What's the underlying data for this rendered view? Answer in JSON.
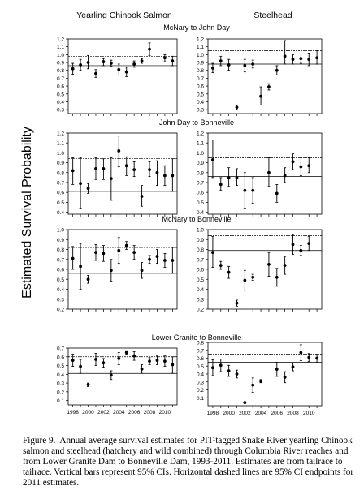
{
  "figure": {
    "col_headers": [
      "Yearling Chinook Salmon",
      "Steelhead"
    ],
    "y_axis_label": "Estimated Survival Probability",
    "caption_label": "Figure 9.",
    "caption_text": "Annual average survival estimates for PIT-tagged Snake River yearling Chinook salmon and steelhead (hatchery and wild combined) through Columbia River reaches and from Lower Granite Dam to Bonneville Dam, 1993-2011.  Estimates are from tailrace to tailrace.  Vertical bars represent 95% CIs.  Horizontal dashed lines are 95% CI endpoints for 2011 estimates."
  },
  "chart_data": [
    {
      "type": "scatter",
      "panel": "Yearling Chinook Salmon",
      "title": "McNary to John Day",
      "ylim": [
        0.25,
        1.2
      ],
      "yticks": [
        0.3,
        0.4,
        0.5,
        0.6,
        0.7,
        0.8,
        0.9,
        1.0,
        1.1,
        1.2
      ],
      "xticks": [],
      "ci_2011": [
        0.86,
        0.98
      ],
      "years": [
        1998,
        1999,
        2000,
        2001,
        2002,
        2003,
        2004,
        2005,
        2006,
        2007,
        2008,
        2009,
        2010,
        2011
      ],
      "estimate": [
        0.82,
        0.87,
        0.9,
        0.76,
        0.91,
        0.89,
        0.81,
        0.78,
        0.88,
        0.92,
        1.07,
        null,
        0.96,
        0.92
      ],
      "ci_low": [
        0.75,
        0.8,
        0.82,
        0.71,
        0.86,
        0.85,
        0.74,
        0.72,
        0.84,
        0.89,
        0.99,
        null,
        0.91,
        0.86
      ],
      "ci_high": [
        0.89,
        0.94,
        0.99,
        0.81,
        0.95,
        0.93,
        0.88,
        0.84,
        0.92,
        0.95,
        1.15,
        null,
        1.0,
        0.98
      ]
    },
    {
      "type": "scatter",
      "panel": "Steelhead",
      "title": "McNary to John Day",
      "ylim": [
        0.25,
        1.2
      ],
      "yticks": [
        0.3,
        0.4,
        0.5,
        0.6,
        0.7,
        0.8,
        0.9,
        1.0,
        1.1,
        1.2
      ],
      "xticks": [],
      "ci_2011": [
        0.88,
        1.05
      ],
      "years": [
        1998,
        1999,
        2000,
        2001,
        2002,
        2003,
        2004,
        2005,
        2006,
        2007,
        2008,
        2009,
        2010,
        2011
      ],
      "estimate": [
        0.83,
        0.92,
        0.87,
        0.33,
        0.86,
        0.88,
        0.47,
        0.59,
        0.8,
        0.98,
        0.94,
        0.95,
        0.94,
        0.96
      ],
      "ci_low": [
        0.77,
        0.86,
        0.8,
        0.3,
        0.78,
        0.83,
        0.36,
        0.55,
        0.74,
        0.88,
        0.88,
        0.89,
        0.86,
        0.88
      ],
      "ci_high": [
        0.89,
        0.98,
        0.94,
        0.36,
        0.94,
        0.93,
        0.59,
        0.63,
        0.86,
        1.18,
        1.0,
        1.01,
        1.02,
        1.05
      ]
    },
    {
      "type": "scatter",
      "panel": "Yearling Chinook Salmon",
      "title": "John Day to Bonneville",
      "ylim": [
        0.38,
        1.2
      ],
      "yticks": [
        0.4,
        0.5,
        0.6,
        0.7,
        0.8,
        0.9,
        1.0,
        1.1,
        1.2
      ],
      "xticks": [],
      "ci_2011": [
        0.61,
        0.94
      ],
      "years": [
        1998,
        1999,
        2000,
        2001,
        2002,
        2003,
        2004,
        2005,
        2006,
        2007,
        2008,
        2009,
        2010,
        2011
      ],
      "estimate": [
        0.82,
        0.69,
        0.64,
        0.84,
        0.84,
        0.74,
        1.02,
        0.87,
        0.83,
        0.56,
        0.83,
        0.8,
        0.77,
        0.77
      ],
      "ci_low": [
        0.68,
        0.44,
        0.59,
        0.73,
        0.73,
        0.52,
        0.86,
        0.77,
        0.76,
        0.46,
        0.76,
        0.67,
        0.67,
        0.61
      ],
      "ci_high": [
        0.95,
        0.95,
        0.69,
        0.95,
        0.94,
        0.95,
        1.17,
        0.96,
        0.91,
        0.67,
        0.91,
        0.92,
        0.87,
        0.94
      ]
    },
    {
      "type": "scatter",
      "panel": "Steelhead",
      "title": "John Day to Bonneville",
      "ylim": [
        0.38,
        1.2
      ],
      "yticks": [
        0.4,
        0.5,
        0.6,
        0.7,
        0.8,
        0.9,
        1.0,
        1.1,
        1.2
      ],
      "xticks": [],
      "ci_2011": [
        0.76,
        0.95
      ],
      "years": [
        1998,
        1999,
        2000,
        2001,
        2002,
        2003,
        2004,
        2005,
        2006,
        2007,
        2008,
        2009,
        2010,
        2011
      ],
      "estimate": [
        0.93,
        0.68,
        0.75,
        0.75,
        0.62,
        0.62,
        null,
        0.8,
        0.59,
        0.77,
        0.91,
        0.86,
        0.87,
        null
      ],
      "ci_low": [
        0.75,
        0.62,
        0.66,
        0.67,
        0.44,
        0.49,
        null,
        0.66,
        0.5,
        0.7,
        0.83,
        0.77,
        0.8,
        null
      ],
      "ci_high": [
        1.13,
        0.75,
        0.85,
        0.84,
        0.8,
        0.75,
        null,
        0.95,
        0.68,
        0.85,
        0.99,
        0.95,
        0.95,
        null
      ]
    },
    {
      "type": "scatter",
      "panel": "Yearling Chinook Salmon",
      "title": "McNary to Bonneville",
      "ylim": [
        0.2,
        1.0
      ],
      "yticks": [
        0.2,
        0.3,
        0.4,
        0.5,
        0.6,
        0.7,
        0.8,
        0.9,
        1.0
      ],
      "xticks": [],
      "ci_2011": [
        0.56,
        0.82
      ],
      "years": [
        1998,
        1999,
        2000,
        2001,
        2002,
        2003,
        2004,
        2005,
        2006,
        2007,
        2008,
        2009,
        2010,
        2011
      ],
      "estimate": [
        0.71,
        0.63,
        0.5,
        0.77,
        0.76,
        0.59,
        0.79,
        0.84,
        0.77,
        0.59,
        0.7,
        0.73,
        0.69,
        0.69
      ],
      "ci_low": [
        0.6,
        0.4,
        0.46,
        0.69,
        0.68,
        0.48,
        0.66,
        0.8,
        0.7,
        0.51,
        0.66,
        0.66,
        0.62,
        0.56
      ],
      "ci_high": [
        0.83,
        0.86,
        0.54,
        0.85,
        0.84,
        0.7,
        0.92,
        0.88,
        0.84,
        0.67,
        0.74,
        0.8,
        0.76,
        0.82
      ]
    },
    {
      "type": "scatter",
      "panel": "Steelhead",
      "title": "McNary to Bonneville",
      "ylim": [
        0.2,
        1.0
      ],
      "yticks": [
        0.2,
        0.3,
        0.4,
        0.5,
        0.6,
        0.7,
        0.8,
        0.9,
        1.0
      ],
      "xticks": [],
      "ci_2011": [
        0.79,
        0.94
      ],
      "years": [
        1998,
        1999,
        2000,
        2001,
        2002,
        2003,
        2004,
        2005,
        2006,
        2007,
        2008,
        2009,
        2010,
        2011
      ],
      "estimate": [
        0.77,
        0.64,
        0.57,
        0.26,
        0.49,
        0.52,
        null,
        0.65,
        0.52,
        0.64,
        0.85,
        0.79,
        0.86,
        null
      ],
      "ci_low": [
        0.62,
        0.6,
        0.51,
        0.23,
        0.39,
        0.49,
        null,
        0.53,
        0.43,
        0.55,
        0.75,
        0.74,
        0.79,
        null
      ],
      "ci_high": [
        0.93,
        0.68,
        0.63,
        0.29,
        0.59,
        0.55,
        null,
        0.77,
        0.61,
        0.73,
        0.95,
        0.84,
        0.93,
        null
      ]
    },
    {
      "type": "scatter",
      "panel": "Yearling Chinook Salmon",
      "title": "Lower Granite to Bonneville",
      "ylim": [
        0.05,
        0.7
      ],
      "yticks": [
        0.1,
        0.2,
        0.3,
        0.4,
        0.5,
        0.6,
        0.7
      ],
      "xticks": [
        1998,
        2000,
        2002,
        2004,
        2006,
        2008,
        2010
      ],
      "ci_2011": [
        0.41,
        0.6
      ],
      "years": [
        1998,
        1999,
        2000,
        2001,
        2002,
        2003,
        2004,
        2005,
        2006,
        2007,
        2008,
        2009,
        2010,
        2011
      ],
      "estimate": [
        0.56,
        0.49,
        0.28,
        0.57,
        0.53,
        0.39,
        0.58,
        0.65,
        0.61,
        0.46,
        0.55,
        0.56,
        0.55,
        0.51
      ],
      "ci_low": [
        0.49,
        0.41,
        0.26,
        0.5,
        0.48,
        0.34,
        0.51,
        0.63,
        0.56,
        0.41,
        0.51,
        0.51,
        0.49,
        0.41
      ],
      "ci_high": [
        0.63,
        0.57,
        0.3,
        0.64,
        0.58,
        0.44,
        0.65,
        0.67,
        0.66,
        0.51,
        0.59,
        0.61,
        0.61,
        0.6
      ]
    },
    {
      "type": "scatter",
      "panel": "Steelhead",
      "title": "",
      "ylim": [
        0.0,
        0.8
      ],
      "yticks": [
        0.1,
        0.2,
        0.3,
        0.4,
        0.5,
        0.6,
        0.7,
        0.8
      ],
      "xticks": [
        1998,
        2000,
        2002,
        2004,
        2006,
        2008,
        2010
      ],
      "ci_2011": [
        0.55,
        0.65
      ],
      "years": [
        1998,
        1999,
        2000,
        2001,
        2002,
        2003,
        2004,
        2005,
        2006,
        2007,
        2008,
        2009,
        2010,
        2011
      ],
      "estimate": [
        0.48,
        0.51,
        0.44,
        0.4,
        0.04,
        0.26,
        0.31,
        null,
        0.46,
        0.36,
        0.49,
        0.67,
        0.61,
        0.6
      ],
      "ci_low": [
        0.38,
        0.43,
        0.37,
        0.35,
        0.03,
        0.17,
        0.29,
        null,
        0.37,
        0.29,
        0.44,
        0.57,
        0.56,
        0.55
      ],
      "ci_high": [
        0.58,
        0.59,
        0.51,
        0.45,
        0.05,
        0.35,
        0.33,
        null,
        0.55,
        0.43,
        0.54,
        0.77,
        0.66,
        0.65
      ]
    }
  ]
}
